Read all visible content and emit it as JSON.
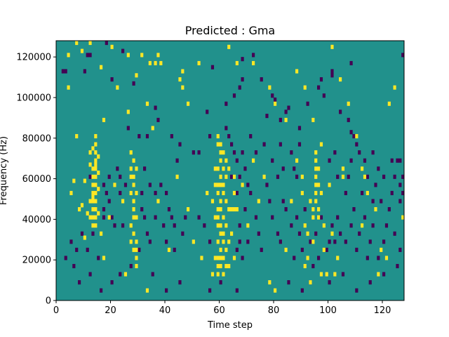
{
  "chart_data": {
    "type": "heatmap",
    "title": "Predicted : Gma",
    "xlabel": "Time step",
    "ylabel": "Frequency (Hz)",
    "xlim": [
      0,
      128
    ],
    "ylim": [
      0,
      128000
    ],
    "x_ticks": [
      0,
      20,
      40,
      60,
      80,
      100,
      120
    ],
    "x_tick_labels": [
      "0",
      "20",
      "40",
      "60",
      "80",
      "100",
      "120"
    ],
    "y_ticks": [
      0,
      20000,
      40000,
      60000,
      80000,
      100000,
      120000
    ],
    "y_tick_labels": [
      "0",
      "20000",
      "40000",
      "60000",
      "80000",
      "100000",
      "120000"
    ],
    "grid": false,
    "legend": "none",
    "rows": 64,
    "cols": 128,
    "colors": {
      "background": "#21918c",
      "high": "#fde725",
      "low": "#440154"
    },
    "background_value": 0,
    "high_value": 1,
    "low_value": -1,
    "high_cells": [
      [
        4,
        60
      ],
      [
        7,
        63
      ],
      [
        9,
        61
      ],
      [
        12,
        63
      ],
      [
        10,
        15
      ],
      [
        8,
        22
      ],
      [
        9,
        23
      ],
      [
        11,
        21
      ],
      [
        12,
        24
      ],
      [
        13,
        25
      ],
      [
        5,
        26
      ],
      [
        6,
        29
      ],
      [
        10,
        29
      ],
      [
        12,
        33
      ],
      [
        14,
        33
      ],
      [
        7,
        40
      ],
      [
        17,
        44
      ],
      [
        26,
        46
      ],
      [
        33,
        48
      ],
      [
        22,
        52
      ],
      [
        4,
        52
      ],
      [
        29,
        55
      ],
      [
        16,
        57
      ],
      [
        34,
        58
      ],
      [
        36,
        58
      ],
      [
        37,
        60
      ],
      [
        13,
        37
      ],
      [
        13,
        32
      ],
      [
        13,
        30
      ],
      [
        13,
        28
      ],
      [
        13,
        26
      ],
      [
        13,
        24
      ],
      [
        13,
        22
      ],
      [
        13,
        20
      ],
      [
        13,
        18
      ],
      [
        14,
        40
      ],
      [
        14,
        38
      ],
      [
        14,
        36
      ],
      [
        14,
        34
      ],
      [
        14,
        32
      ],
      [
        14,
        30
      ],
      [
        14,
        28
      ],
      [
        14,
        26
      ],
      [
        14,
        24
      ],
      [
        14,
        22
      ],
      [
        14,
        20
      ],
      [
        14,
        18
      ],
      [
        12,
        36
      ],
      [
        15,
        35
      ],
      [
        15,
        31
      ],
      [
        15,
        27
      ],
      [
        15,
        21
      ],
      [
        12,
        20
      ],
      [
        27,
        36
      ],
      [
        27,
        32
      ],
      [
        27,
        30
      ],
      [
        27,
        26
      ],
      [
        27,
        18
      ],
      [
        28,
        34
      ],
      [
        28,
        30
      ],
      [
        28,
        28
      ],
      [
        28,
        24
      ],
      [
        28,
        22
      ],
      [
        28,
        20
      ],
      [
        28,
        16
      ],
      [
        29,
        32
      ],
      [
        29,
        26
      ],
      [
        29,
        20
      ],
      [
        29,
        14
      ],
      [
        29,
        12
      ],
      [
        29,
        10
      ],
      [
        29,
        8
      ],
      [
        27,
        14
      ],
      [
        28,
        12
      ],
      [
        59,
        40
      ],
      [
        59,
        38
      ],
      [
        59,
        32
      ],
      [
        59,
        28
      ],
      [
        59,
        26
      ],
      [
        59,
        22
      ],
      [
        59,
        20
      ],
      [
        59,
        18
      ],
      [
        59,
        14
      ],
      [
        59,
        10
      ],
      [
        59,
        8
      ],
      [
        59,
        6
      ],
      [
        60,
        38
      ],
      [
        60,
        36
      ],
      [
        60,
        34
      ],
      [
        60,
        30
      ],
      [
        60,
        28
      ],
      [
        60,
        24
      ],
      [
        60,
        22
      ],
      [
        60,
        18
      ],
      [
        60,
        16
      ],
      [
        60,
        12
      ],
      [
        60,
        10
      ],
      [
        60,
        8
      ],
      [
        61,
        36
      ],
      [
        61,
        32
      ],
      [
        61,
        28
      ],
      [
        61,
        26
      ],
      [
        61,
        20
      ],
      [
        61,
        16
      ],
      [
        61,
        14
      ],
      [
        61,
        10
      ],
      [
        61,
        6
      ],
      [
        62,
        34
      ],
      [
        62,
        30
      ],
      [
        62,
        24
      ],
      [
        62,
        18
      ],
      [
        62,
        12
      ],
      [
        62,
        8
      ],
      [
        58,
        32
      ],
      [
        58,
        28
      ],
      [
        58,
        20
      ],
      [
        58,
        10
      ],
      [
        57,
        6
      ],
      [
        57,
        24
      ],
      [
        63,
        32
      ],
      [
        63,
        22
      ],
      [
        63,
        14
      ],
      [
        63,
        8
      ],
      [
        64,
        22
      ],
      [
        64,
        16
      ],
      [
        65,
        30
      ],
      [
        65,
        26
      ],
      [
        65,
        22
      ],
      [
        66,
        22
      ],
      [
        65,
        10
      ],
      [
        95,
        36
      ],
      [
        95,
        34
      ],
      [
        95,
        32
      ],
      [
        95,
        30
      ],
      [
        95,
        28
      ],
      [
        95,
        26
      ],
      [
        95,
        24
      ],
      [
        96,
        32
      ],
      [
        96,
        28
      ],
      [
        96,
        22
      ],
      [
        96,
        20
      ],
      [
        94,
        22
      ],
      [
        94,
        20
      ],
      [
        94,
        14
      ],
      [
        92,
        16
      ],
      [
        92,
        10
      ],
      [
        91,
        18
      ],
      [
        91,
        8
      ],
      [
        90,
        26
      ],
      [
        90,
        30
      ],
      [
        93,
        24
      ],
      [
        93,
        4
      ],
      [
        98,
        12
      ],
      [
        98,
        18
      ],
      [
        97,
        6
      ],
      [
        97,
        26
      ],
      [
        99,
        6
      ],
      [
        100,
        28
      ],
      [
        102,
        6
      ],
      [
        103,
        10
      ],
      [
        101,
        16
      ],
      [
        105,
        32
      ],
      [
        20,
        62
      ],
      [
        26,
        60
      ],
      [
        31,
        60
      ],
      [
        38,
        58
      ],
      [
        46,
        56
      ],
      [
        52,
        58
      ],
      [
        45,
        54
      ],
      [
        46,
        52
      ],
      [
        48,
        48
      ],
      [
        63,
        62
      ],
      [
        66,
        58
      ],
      [
        72,
        58
      ],
      [
        78,
        52
      ],
      [
        80,
        48
      ],
      [
        84,
        44
      ],
      [
        88,
        56
      ],
      [
        91,
        52
      ],
      [
        94,
        44
      ],
      [
        97,
        38
      ],
      [
        101,
        62
      ],
      [
        104,
        54
      ],
      [
        107,
        48
      ],
      [
        110,
        40
      ],
      [
        112,
        32
      ],
      [
        113,
        30
      ],
      [
        114,
        26
      ],
      [
        117,
        22
      ],
      [
        119,
        12
      ],
      [
        121,
        10
      ],
      [
        122,
        48
      ],
      [
        124,
        52
      ],
      [
        127,
        20
      ],
      [
        118,
        6
      ],
      [
        112,
        18
      ],
      [
        105,
        30
      ],
      [
        78,
        4
      ],
      [
        80,
        2
      ],
      [
        84,
        12
      ],
      [
        86,
        24
      ],
      [
        88,
        34
      ],
      [
        44,
        30
      ],
      [
        48,
        22
      ],
      [
        50,
        14
      ],
      [
        53,
        10
      ],
      [
        55,
        26
      ],
      [
        68,
        28
      ],
      [
        70,
        18
      ],
      [
        72,
        34
      ],
      [
        76,
        30
      ],
      [
        74,
        24
      ],
      [
        33,
        2
      ],
      [
        41,
        12
      ],
      [
        37,
        24
      ],
      [
        25,
        6
      ],
      [
        19,
        20
      ],
      [
        17,
        10
      ],
      [
        16,
        16
      ],
      [
        21,
        28
      ],
      [
        24,
        24
      ],
      [
        35,
        42
      ]
    ],
    "low_cells": [
      [
        18,
        63
      ],
      [
        11,
        60
      ],
      [
        12,
        60
      ],
      [
        24,
        61
      ],
      [
        10,
        56
      ],
      [
        2,
        56
      ],
      [
        3,
        56
      ],
      [
        20,
        54
      ],
      [
        28,
        53
      ],
      [
        36,
        47
      ],
      [
        26,
        42
      ],
      [
        37,
        44
      ],
      [
        30,
        40
      ],
      [
        33,
        40
      ],
      [
        42,
        40
      ],
      [
        45,
        38
      ],
      [
        44,
        34
      ],
      [
        50,
        36
      ],
      [
        56,
        40
      ],
      [
        52,
        36
      ],
      [
        55,
        46
      ],
      [
        57,
        57
      ],
      [
        62,
        48
      ],
      [
        65,
        50
      ],
      [
        67,
        52
      ],
      [
        68,
        54
      ],
      [
        68,
        59
      ],
      [
        72,
        60
      ],
      [
        75,
        54
      ],
      [
        77,
        45
      ],
      [
        79,
        50
      ],
      [
        80,
        49
      ],
      [
        82,
        44
      ],
      [
        84,
        46
      ],
      [
        85,
        47
      ],
      [
        89,
        42
      ],
      [
        92,
        48
      ],
      [
        98,
        50
      ],
      [
        97,
        54
      ],
      [
        101,
        56
      ],
      [
        104,
        46
      ],
      [
        107,
        44
      ],
      [
        108,
        41
      ],
      [
        109,
        40
      ],
      [
        110,
        38
      ],
      [
        111,
        36
      ],
      [
        113,
        34
      ],
      [
        116,
        36
      ],
      [
        118,
        32
      ],
      [
        120,
        30
      ],
      [
        123,
        34
      ],
      [
        125,
        34
      ],
      [
        126,
        34
      ],
      [
        127,
        60
      ],
      [
        108,
        58
      ],
      [
        101,
        55
      ],
      [
        96,
        52
      ],
      [
        89,
        38
      ],
      [
        12,
        30
      ],
      [
        17,
        28
      ],
      [
        19,
        30
      ],
      [
        19,
        24
      ],
      [
        17,
        22
      ],
      [
        17,
        20
      ],
      [
        18,
        26
      ],
      [
        20,
        20
      ],
      [
        21,
        18
      ],
      [
        24,
        18
      ],
      [
        22,
        32
      ],
      [
        23,
        30
      ],
      [
        23,
        26
      ],
      [
        25,
        28
      ],
      [
        32,
        32
      ],
      [
        31,
        26
      ],
      [
        31,
        22
      ],
      [
        34,
        28
      ],
      [
        36,
        26
      ],
      [
        38,
        28
      ],
      [
        32,
        20
      ],
      [
        33,
        16
      ],
      [
        34,
        14
      ],
      [
        30,
        12
      ],
      [
        39,
        18
      ],
      [
        36,
        20
      ],
      [
        40,
        26
      ],
      [
        41,
        22
      ],
      [
        42,
        20
      ],
      [
        43,
        18
      ],
      [
        46,
        16
      ],
      [
        47,
        20
      ],
      [
        43,
        12
      ],
      [
        40,
        14
      ],
      [
        52,
        20
      ],
      [
        54,
        18
      ],
      [
        56,
        14
      ],
      [
        62,
        24
      ],
      [
        64,
        30
      ],
      [
        66,
        26
      ],
      [
        66,
        12
      ],
      [
        67,
        18
      ],
      [
        67,
        14
      ],
      [
        68,
        10
      ],
      [
        69,
        22
      ],
      [
        70,
        14
      ],
      [
        71,
        26
      ],
      [
        73,
        20
      ],
      [
        74,
        16
      ],
      [
        75,
        12
      ],
      [
        77,
        28
      ],
      [
        78,
        24
      ],
      [
        79,
        20
      ],
      [
        81,
        16
      ],
      [
        82,
        14
      ],
      [
        83,
        24
      ],
      [
        84,
        22
      ],
      [
        86,
        18
      ],
      [
        87,
        10
      ],
      [
        88,
        20
      ],
      [
        89,
        16
      ],
      [
        90,
        12
      ],
      [
        91,
        22
      ],
      [
        93,
        14
      ],
      [
        94,
        8
      ],
      [
        95,
        16
      ],
      [
        96,
        10
      ],
      [
        97,
        20
      ],
      [
        99,
        12
      ],
      [
        100,
        14
      ],
      [
        101,
        18
      ],
      [
        102,
        14
      ],
      [
        103,
        20
      ],
      [
        104,
        16
      ],
      [
        106,
        14
      ],
      [
        108,
        18
      ],
      [
        109,
        22
      ],
      [
        110,
        12
      ],
      [
        111,
        16
      ],
      [
        113,
        20
      ],
      [
        114,
        10
      ],
      [
        115,
        14
      ],
      [
        116,
        18
      ],
      [
        118,
        10
      ],
      [
        120,
        14
      ],
      [
        121,
        18
      ],
      [
        122,
        22
      ],
      [
        124,
        16
      ],
      [
        126,
        12
      ],
      [
        125,
        8
      ],
      [
        120,
        6
      ],
      [
        115,
        4
      ],
      [
        110,
        2
      ],
      [
        105,
        6
      ],
      [
        100,
        4
      ],
      [
        93,
        4
      ],
      [
        90,
        2
      ],
      [
        85,
        4
      ],
      [
        66,
        2
      ],
      [
        60,
        4
      ],
      [
        56,
        2
      ],
      [
        45,
        4
      ],
      [
        40,
        2
      ],
      [
        35,
        6
      ],
      [
        27,
        8
      ],
      [
        23,
        6
      ],
      [
        20,
        4
      ],
      [
        16,
        2
      ],
      [
        12,
        6
      ],
      [
        8,
        4
      ],
      [
        6,
        8
      ],
      [
        3,
        10
      ],
      [
        5,
        14
      ],
      [
        7,
        12
      ],
      [
        9,
        16
      ],
      [
        11,
        12
      ],
      [
        13,
        16
      ],
      [
        15,
        10
      ],
      [
        62,
        42
      ],
      [
        63,
        40
      ],
      [
        64,
        38
      ],
      [
        65,
        36
      ],
      [
        66,
        34
      ],
      [
        67,
        30
      ],
      [
        68,
        36
      ],
      [
        69,
        32
      ],
      [
        70,
        28
      ],
      [
        71,
        40
      ],
      [
        73,
        36
      ],
      [
        76,
        38
      ],
      [
        79,
        34
      ],
      [
        81,
        30
      ],
      [
        82,
        38
      ],
      [
        83,
        32
      ],
      [
        86,
        36
      ],
      [
        87,
        32
      ],
      [
        88,
        30
      ],
      [
        100,
        34
      ],
      [
        102,
        36
      ],
      [
        103,
        30
      ],
      [
        106,
        26
      ],
      [
        107,
        30
      ],
      [
        108,
        34
      ],
      [
        112,
        26
      ],
      [
        114,
        30
      ],
      [
        116,
        24
      ],
      [
        117,
        28
      ],
      [
        119,
        24
      ],
      [
        123,
        26
      ],
      [
        124,
        30
      ],
      [
        126,
        24
      ],
      [
        127,
        26
      ],
      [
        126,
        28
      ],
      [
        127,
        30
      ]
    ]
  }
}
